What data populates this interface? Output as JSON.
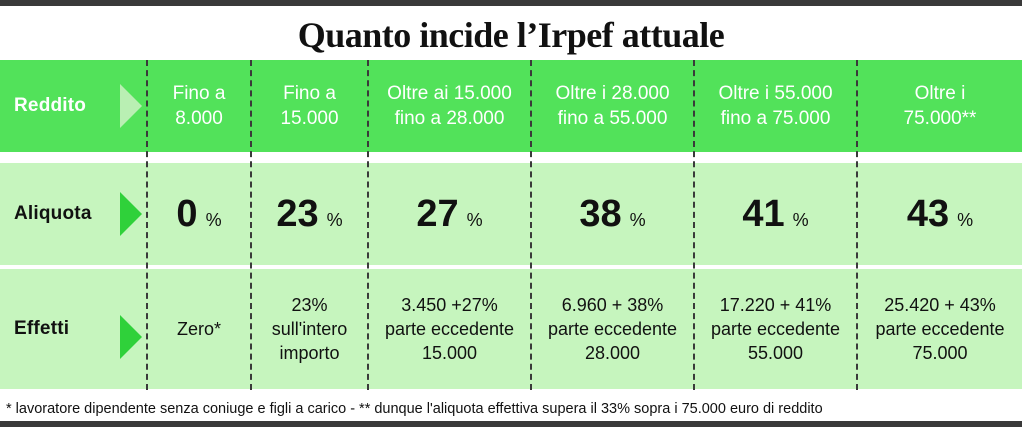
{
  "title": "Quanto incide l’Irpef attuale",
  "colors": {
    "header_green": "#52e25a",
    "pale_green": "#c6f5be",
    "chevron_green": "#2fd13a",
    "chevron_light": "#b9efb3"
  },
  "rows": {
    "reddito_label": "Reddito",
    "aliquota_label": "Aliquota",
    "effetti_label": "Effetti"
  },
  "brackets": [
    {
      "line1": "Fino a",
      "line2": "8.000",
      "rate": "0",
      "unit": "%",
      "eff1": "Zero*",
      "eff2": "",
      "eff3": ""
    },
    {
      "line1": "Fino a",
      "line2": "15.000",
      "rate": "23",
      "unit": "%",
      "eff1": "23%",
      "eff2": "sull'intero",
      "eff3": "importo"
    },
    {
      "line1": "Oltre ai 15.000",
      "line2": "fino a 28.000",
      "rate": "27",
      "unit": "%",
      "eff1": "3.450 +27%",
      "eff2": "parte eccedente",
      "eff3": "15.000"
    },
    {
      "line1": "Oltre i 28.000",
      "line2": "fino a 55.000",
      "rate": "38",
      "unit": "%",
      "eff1": "6.960 + 38%",
      "eff2": "parte eccedente",
      "eff3": "28.000"
    },
    {
      "line1": "Oltre i 55.000",
      "line2": "fino a 75.000",
      "rate": "41",
      "unit": "%",
      "eff1": "17.220 + 41%",
      "eff2": "parte eccedente",
      "eff3": "55.000"
    },
    {
      "line1": "Oltre i",
      "line2": "75.000**",
      "rate": "43",
      "unit": "%",
      "eff1": "25.420 + 43%",
      "eff2": "parte eccedente",
      "eff3": "75.000"
    }
  ],
  "footer": "* lavoratore dipendente senza coniuge e figli a carico - ** dunque l'aliquota effettiva supera il 33% sopra i 75.000 euro di reddito"
}
